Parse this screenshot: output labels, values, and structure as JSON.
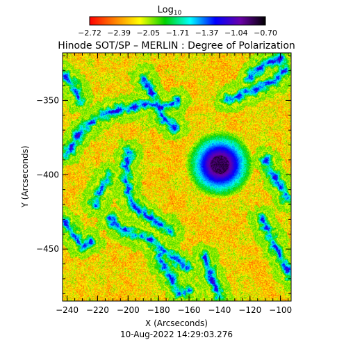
{
  "chart_data": {
    "type": "heatmap",
    "title": "Hinode SOT/SP – MERLIN : Degree of Polarization",
    "xlabel": "X (Arcseconds)",
    "ylabel": "Y (Arcseconds)",
    "xlim": [
      -243,
      -93
    ],
    "ylim": [
      -485,
      -318
    ],
    "x_ticks": [
      -240,
      -220,
      -200,
      -180,
      -160,
      -140,
      -120,
      -100
    ],
    "y_ticks": [
      -350,
      -400,
      -450
    ],
    "colorbar": {
      "title_main": "Log",
      "title_sub": "10",
      "range": [
        -2.72,
        -0.7
      ],
      "ticks": [
        "−2.72",
        "−2.39",
        "−2.05",
        "−1.71",
        "−1.37",
        "−1.04",
        "−0.70"
      ],
      "colormap": [
        "#ff0000",
        "#ff8000",
        "#ffff00",
        "#00d000",
        "#00ffff",
        "#0000ff",
        "#6a00a8",
        "#000000"
      ]
    },
    "features": {
      "sunspot_center": [
        -140,
        -393
      ],
      "sunspot_umbra_radius": 6,
      "sunspot_penumbra_radius": 14,
      "network_lanes": [
        [
          [
            -240,
            -385
          ],
          [
            -232,
            -372
          ],
          [
            -222,
            -362
          ],
          [
            -210,
            -357
          ],
          [
            -198,
            -355
          ],
          [
            -188,
            -352
          ],
          [
            -178,
            -355
          ],
          [
            -168,
            -350
          ]
        ],
        [
          [
            -190,
            -335
          ],
          [
            -185,
            -345
          ],
          [
            -180,
            -355
          ],
          [
            -177,
            -362
          ],
          [
            -170,
            -368
          ]
        ],
        [
          [
            -135,
            -350
          ],
          [
            -125,
            -345
          ],
          [
            -116,
            -342
          ],
          [
            -106,
            -338
          ],
          [
            -98,
            -330
          ]
        ],
        [
          [
            -200,
            -385
          ],
          [
            -202,
            -398
          ],
          [
            -200,
            -412
          ],
          [
            -196,
            -422
          ],
          [
            -188,
            -428
          ],
          [
            -180,
            -433
          ],
          [
            -172,
            -438
          ]
        ],
        [
          [
            -212,
            -430
          ],
          [
            -205,
            -436
          ],
          [
            -196,
            -440
          ],
          [
            -186,
            -444
          ],
          [
            -178,
            -450
          ],
          [
            -170,
            -456
          ],
          [
            -162,
            -462
          ]
        ],
        [
          [
            -225,
            -445
          ],
          [
            -230,
            -448
          ],
          [
            -236,
            -440
          ],
          [
            -243,
            -430
          ]
        ],
        [
          [
            -180,
            -455
          ],
          [
            -172,
            -470
          ],
          [
            -166,
            -480
          ],
          [
            -160,
            -478
          ]
        ],
        [
          [
            -150,
            -455
          ],
          [
            -145,
            -470
          ],
          [
            -140,
            -482
          ]
        ],
        [
          [
            -112,
            -430
          ],
          [
            -105,
            -445
          ],
          [
            -98,
            -460
          ],
          [
            -93,
            -468
          ]
        ],
        [
          [
            -120,
            -335
          ],
          [
            -112,
            -326
          ],
          [
            -100,
            -322
          ]
        ],
        [
          [
            -243,
            -332
          ],
          [
            -236,
            -340
          ],
          [
            -232,
            -350
          ]
        ],
        [
          [
            -213,
            -400
          ],
          [
            -218,
            -410
          ],
          [
            -222,
            -420
          ]
        ],
        [
          [
            -110,
            -390
          ],
          [
            -102,
            -405
          ],
          [
            -96,
            -415
          ]
        ]
      ]
    },
    "timestamp": "10-Aug-2022 14:29:03.276"
  }
}
